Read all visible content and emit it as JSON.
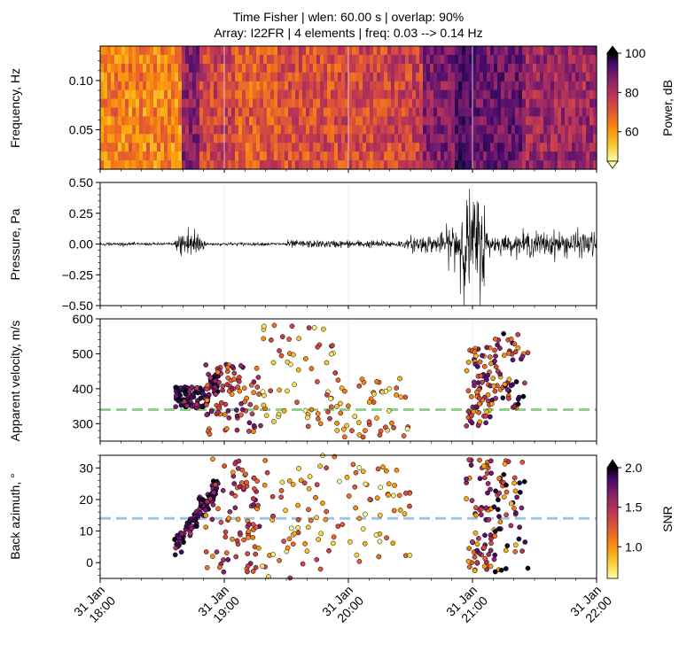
{
  "chart_data": {
    "title_line1": "Time Fisher | wlen: 60.00 s | overlap: 90%",
    "title_line2": "Array: I22FR | 4 elements | freq: 0.03 --> 0.14 Hz",
    "x_axis": {
      "ticks": [
        {
          "day": "31 Jan",
          "time": "18:00",
          "hour": 18
        },
        {
          "day": "31 Jan",
          "time": "19:00",
          "hour": 19
        },
        {
          "day": "31 Jan",
          "time": "20:00",
          "hour": 20
        },
        {
          "day": "31 Jan",
          "time": "21:00",
          "hour": 21
        },
        {
          "day": "31 Jan",
          "time": "22:00",
          "hour": 22
        }
      ],
      "range_hours": [
        18,
        22
      ],
      "vertical_grid": true
    },
    "panels": [
      {
        "type": "heatmap",
        "ylabel": "Frequency, Hz",
        "ylim": [
          0.01,
          0.135
        ],
        "yticks": [
          "0.05",
          "0.10"
        ],
        "yticks_values": [
          0.05,
          0.1
        ],
        "colorbar": {
          "label": "Power, dB",
          "ticks": [
            "60",
            "80",
            "100"
          ],
          "range": [
            45,
            100
          ],
          "extend": "both"
        }
      },
      {
        "type": "line",
        "ylabel": "Pressure, Pa",
        "ylim": [
          -0.5,
          0.5
        ],
        "yticks": [
          "−0.50",
          "−0.25",
          "0.00",
          "0.25",
          "0.50"
        ],
        "yticks_values": [
          -0.5,
          -0.25,
          0,
          0.25,
          0.5
        ],
        "color": "#000000"
      },
      {
        "type": "scatter",
        "ylabel": "Apparent velocity, m/s",
        "ylim": [
          250,
          600
        ],
        "yticks": [
          "300",
          "400",
          "500",
          "600"
        ],
        "yticks_values": [
          300,
          400,
          500,
          600
        ],
        "reference_line": {
          "value": 340,
          "color": "#90d08c"
        }
      },
      {
        "type": "scatter",
        "ylabel": "Back azimuth, °",
        "ylim": [
          -5,
          34
        ],
        "yticks": [
          "0",
          "10",
          "20",
          "30"
        ],
        "yticks_values": [
          0,
          10,
          20,
          30
        ],
        "reference_line": {
          "value": 14,
          "color": "#9cc7e4"
        },
        "colorbar": {
          "label": "SNR",
          "ticks": [
            "1.0",
            "1.5",
            "2.0"
          ],
          "range": [
            0.6,
            2.0
          ],
          "extend": "max"
        }
      }
    ],
    "detection_clusters": [
      {
        "t": [
          18.6,
          18.95
        ],
        "velocity": [
          330,
          420
        ],
        "azimuth": [
          5,
          24
        ],
        "snr": [
          1.3,
          2.0
        ],
        "count": 110
      },
      {
        "t": [
          18.85,
          19.3
        ],
        "velocity": [
          270,
          470
        ],
        "azimuth": [
          -3,
          33
        ],
        "snr": [
          0.9,
          1.6
        ],
        "count": 90
      },
      {
        "t": [
          19.3,
          19.9
        ],
        "velocity": [
          290,
          590
        ],
        "azimuth": [
          -5,
          34
        ],
        "snr": [
          0.6,
          1.3
        ],
        "count": 60
      },
      {
        "t": [
          19.9,
          20.5
        ],
        "velocity": [
          260,
          430
        ],
        "azimuth": [
          -2,
          32
        ],
        "snr": [
          0.6,
          1.2
        ],
        "count": 50
      },
      {
        "t": [
          20.95,
          21.15
        ],
        "velocity": [
          290,
          520
        ],
        "azimuth": [
          -3,
          33
        ],
        "snr": [
          0.8,
          1.7
        ],
        "count": 70
      },
      {
        "t": [
          21.15,
          21.45
        ],
        "velocity": [
          340,
          560
        ],
        "azimuth": [
          -3,
          33
        ],
        "snr": [
          0.8,
          2.0
        ],
        "count": 60
      }
    ]
  }
}
